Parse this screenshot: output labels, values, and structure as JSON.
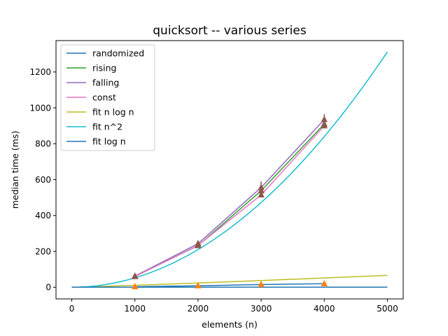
{
  "chart_data": {
    "type": "line",
    "title": "quicksort -- various series",
    "xlabel": "elements (n)",
    "ylabel": "median time (ms)",
    "xlim": [
      -250,
      5250
    ],
    "ylim": [
      -65,
      1375
    ],
    "xticks": [
      0,
      1000,
      2000,
      3000,
      4000,
      5000
    ],
    "yticks": [
      0,
      200,
      400,
      600,
      800,
      1000,
      1200
    ],
    "grid": false,
    "legend_position": "top-left",
    "series": [
      {
        "name": "randomized",
        "color": "#1f77b4",
        "marker": "triangle",
        "x": [
          1000,
          2000,
          3000,
          4000
        ],
        "values": [
          3,
          8,
          15,
          20
        ]
      },
      {
        "name": "rising",
        "color": "#2ca02c",
        "marker": "triangle",
        "x": [
          1000,
          2000,
          3000,
          4000
        ],
        "values": [
          60,
          232,
          538,
          910
        ]
      },
      {
        "name": "falling",
        "color": "#9467bd",
        "marker": "triangle",
        "x": [
          1000,
          2000,
          3000,
          4000
        ],
        "values": [
          62,
          243,
          556,
          935
        ]
      },
      {
        "name": "const",
        "color": "#e377c2",
        "marker": "triangle",
        "x": [
          1000,
          2000,
          3000,
          4000
        ],
        "values": [
          60,
          233,
          515,
          900
        ]
      },
      {
        "name": "fit n log n",
        "color": "#bcbd22",
        "marker": "none",
        "function": "nlogn",
        "x_range": [
          0,
          5000
        ],
        "coef": 0.00108
      },
      {
        "name": "fit n^2",
        "color": "#17becf",
        "marker": "none",
        "function": "n2",
        "x_range": [
          0,
          5000
        ],
        "coef": 5.25e-05
      },
      {
        "name": "fit log n",
        "color": "#1f77b4",
        "marker": "none",
        "function": "logn",
        "x_range": [
          1,
          5000
        ],
        "coef": 0.05
      }
    ],
    "error_bars": {
      "color": "#8c564b",
      "x": [
        1000,
        2000,
        3000,
        4000
      ],
      "low": [
        55,
        222,
        500,
        890
      ],
      "high": [
        68,
        255,
        590,
        965
      ]
    },
    "marker_colors": {
      "randomized": "#ff7f0e",
      "others": "#8c564b"
    }
  }
}
